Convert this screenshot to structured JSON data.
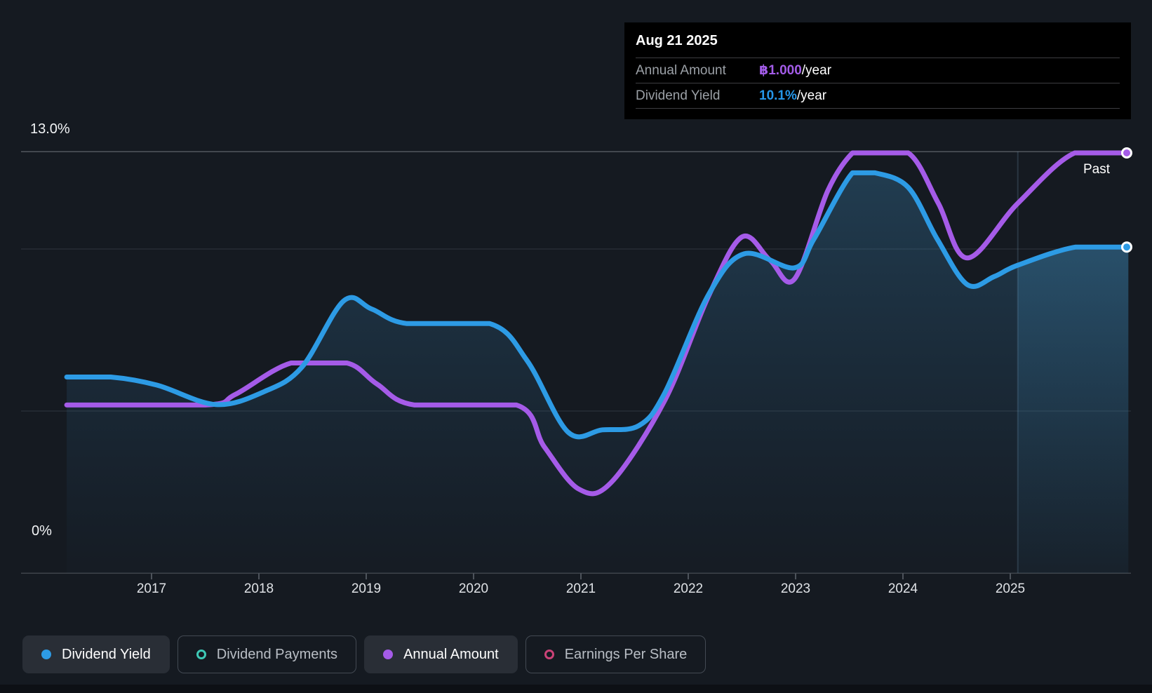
{
  "tooltip": {
    "date": "Aug 21 2025",
    "rows": [
      {
        "label": "Annual Amount",
        "value": "฿1.000",
        "suffix": "/year",
        "color": "#a35ce8"
      },
      {
        "label": "Dividend Yield",
        "value": "10.1%",
        "suffix": "/year",
        "color": "#2596e8"
      }
    ]
  },
  "labels": {
    "past": "Past"
  },
  "axes": {
    "y_top_label": "13.0%",
    "y_bottom_label": "0%",
    "years": [
      "2017",
      "2018",
      "2019",
      "2020",
      "2021",
      "2022",
      "2023",
      "2024",
      "2025"
    ]
  },
  "legend": [
    {
      "label": "Dividend Yield",
      "marker": "filled",
      "color": "#2d9be5",
      "active": true
    },
    {
      "label": "Dividend Payments",
      "marker": "hollow",
      "color": "#3ec9b6",
      "active": false
    },
    {
      "label": "Annual Amount",
      "marker": "filled",
      "color": "#a55be8",
      "active": true
    },
    {
      "label": "Earnings Per Share",
      "marker": "hollow",
      "color": "#cb4277",
      "active": false
    }
  ],
  "colors": {
    "background": "#151a21",
    "blue_line": "#2d9be5",
    "purple_line": "#a55be8",
    "grid_strong": "#51565d",
    "grid_faint": "#30363e",
    "axis_line": "#3e444b",
    "tick": "#4d535b",
    "fill_top": "rgba(62,142,192,0.30)",
    "fill_bottom": "rgba(45,110,160,0.02)",
    "future_fill_top": "rgba(72,162,215,0.30)",
    "future_fill_bottom": "rgba(60,140,190,0.05)",
    "divider": "rgba(140,184,214,0.18)"
  },
  "chart_data": {
    "type": "area",
    "title": "Dividend history and yield over time",
    "x_range_years": [
      2016.2,
      2026.1
    ],
    "gridlines_pct": [
      13.0,
      10.0,
      5.0,
      0.0
    ],
    "past_divider_year": 2025.07,
    "current_date_label": "Aug 21 2025",
    "series": [
      {
        "name": "Dividend Yield",
        "unit": "pct",
        "color": "#2d9be5",
        "end_value": "10.1%",
        "points": [
          [
            2016.21,
            6.05
          ],
          [
            2016.62,
            6.05
          ],
          [
            2017.05,
            5.8
          ],
          [
            2017.6,
            5.2
          ],
          [
            2018.05,
            5.6
          ],
          [
            2018.4,
            6.35
          ],
          [
            2018.79,
            8.4
          ],
          [
            2019.05,
            8.15
          ],
          [
            2019.38,
            7.7
          ],
          [
            2020.15,
            7.7
          ],
          [
            2020.5,
            6.55
          ],
          [
            2020.88,
            4.35
          ],
          [
            2021.2,
            4.42
          ],
          [
            2021.54,
            4.55
          ],
          [
            2021.78,
            5.55
          ],
          [
            2022.19,
            8.6
          ],
          [
            2022.52,
            9.85
          ],
          [
            2022.99,
            9.42
          ],
          [
            2023.17,
            10.3
          ],
          [
            2023.53,
            12.35
          ],
          [
            2023.74,
            12.35
          ],
          [
            2024.05,
            11.9
          ],
          [
            2024.32,
            10.3
          ],
          [
            2024.6,
            8.9
          ],
          [
            2024.85,
            9.15
          ],
          [
            2025.07,
            9.5
          ],
          [
            2025.61,
            10.06
          ],
          [
            2026.1,
            10.06
          ]
        ]
      },
      {
        "name": "Annual Amount",
        "unit": "amt",
        "color": "#a55be8",
        "end_value": "฿1.000/year",
        "points": [
          [
            2016.21,
            0.4
          ],
          [
            2017.5,
            0.4
          ],
          [
            2017.78,
            0.425
          ],
          [
            2018.3,
            0.5
          ],
          [
            2018.82,
            0.5
          ],
          [
            2019.1,
            0.45
          ],
          [
            2019.45,
            0.4
          ],
          [
            2020.4,
            0.4
          ],
          [
            2020.66,
            0.3
          ],
          [
            2020.98,
            0.2
          ],
          [
            2021.28,
            0.215
          ],
          [
            2021.78,
            0.41
          ],
          [
            2022.19,
            0.66
          ],
          [
            2022.5,
            0.8
          ],
          [
            2022.76,
            0.745
          ],
          [
            2022.99,
            0.7
          ],
          [
            2023.3,
            0.91
          ],
          [
            2023.53,
            1.0
          ],
          [
            2023.65,
            1.0
          ],
          [
            2024.05,
            1.0
          ],
          [
            2024.33,
            0.88
          ],
          [
            2024.6,
            0.75
          ],
          [
            2025.07,
            0.88
          ],
          [
            2025.6,
            1.0
          ],
          [
            2026.1,
            1.0
          ]
        ]
      }
    ]
  }
}
